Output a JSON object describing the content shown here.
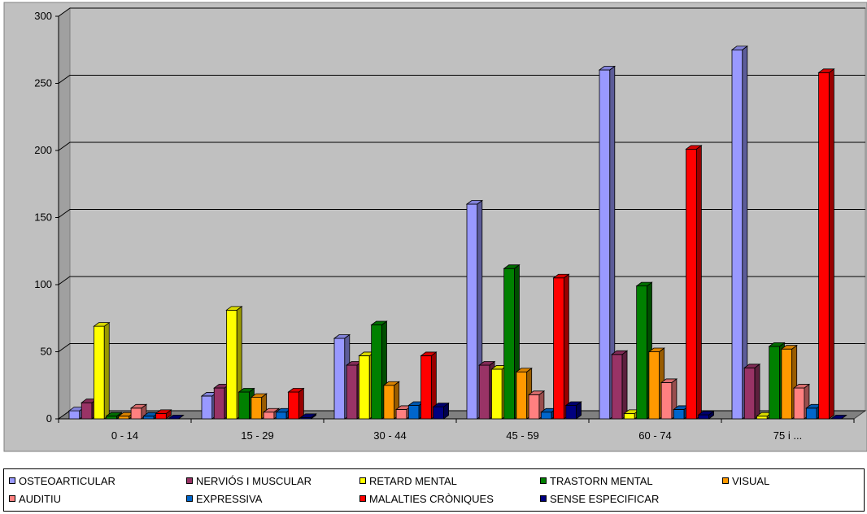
{
  "chart_data": {
    "type": "bar",
    "categories": [
      "0 - 14",
      "15 - 29",
      "30 - 44",
      "45 - 59",
      "60 - 74",
      "75 i ..."
    ],
    "ylim": [
      0,
      300
    ],
    "yticks": [
      0,
      50,
      100,
      150,
      200,
      250,
      300
    ],
    "grid": true,
    "legend_position": "bottom",
    "series": [
      {
        "name": "OSTEOARTICULAR",
        "color": "#9999ff",
        "values": [
          6,
          17,
          60,
          160,
          260,
          275
        ]
      },
      {
        "name": "NERVIÓS I MUSCULAR",
        "color": "#993366",
        "values": [
          12,
          23,
          40,
          40,
          48,
          38
        ]
      },
      {
        "name": "RETARD MENTAL",
        "color": "#ffff00",
        "values": [
          69,
          81,
          47,
          37,
          4,
          2
        ]
      },
      {
        "name": "TRASTORN MENTAL",
        "color": "#008000",
        "values": [
          2,
          20,
          70,
          112,
          99,
          54
        ]
      },
      {
        "name": "VISUAL",
        "color": "#ff9900",
        "values": [
          2,
          16,
          25,
          35,
          50,
          52
        ]
      },
      {
        "name": "AUDITIU",
        "color": "#ff8080",
        "values": [
          8,
          5,
          7,
          18,
          27,
          23
        ]
      },
      {
        "name": "EXPRESSIVA",
        "color": "#0066cc",
        "values": [
          2,
          5,
          10,
          5,
          7,
          8
        ]
      },
      {
        "name": "MALALTIES CRÒNIQUES",
        "color": "#ff0000",
        "values": [
          4,
          20,
          47,
          105,
          201,
          258
        ]
      },
      {
        "name": "SENSE ESPECIFICAR",
        "color": "#000080",
        "values": [
          0,
          1,
          9,
          10,
          3,
          0
        ]
      }
    ]
  }
}
